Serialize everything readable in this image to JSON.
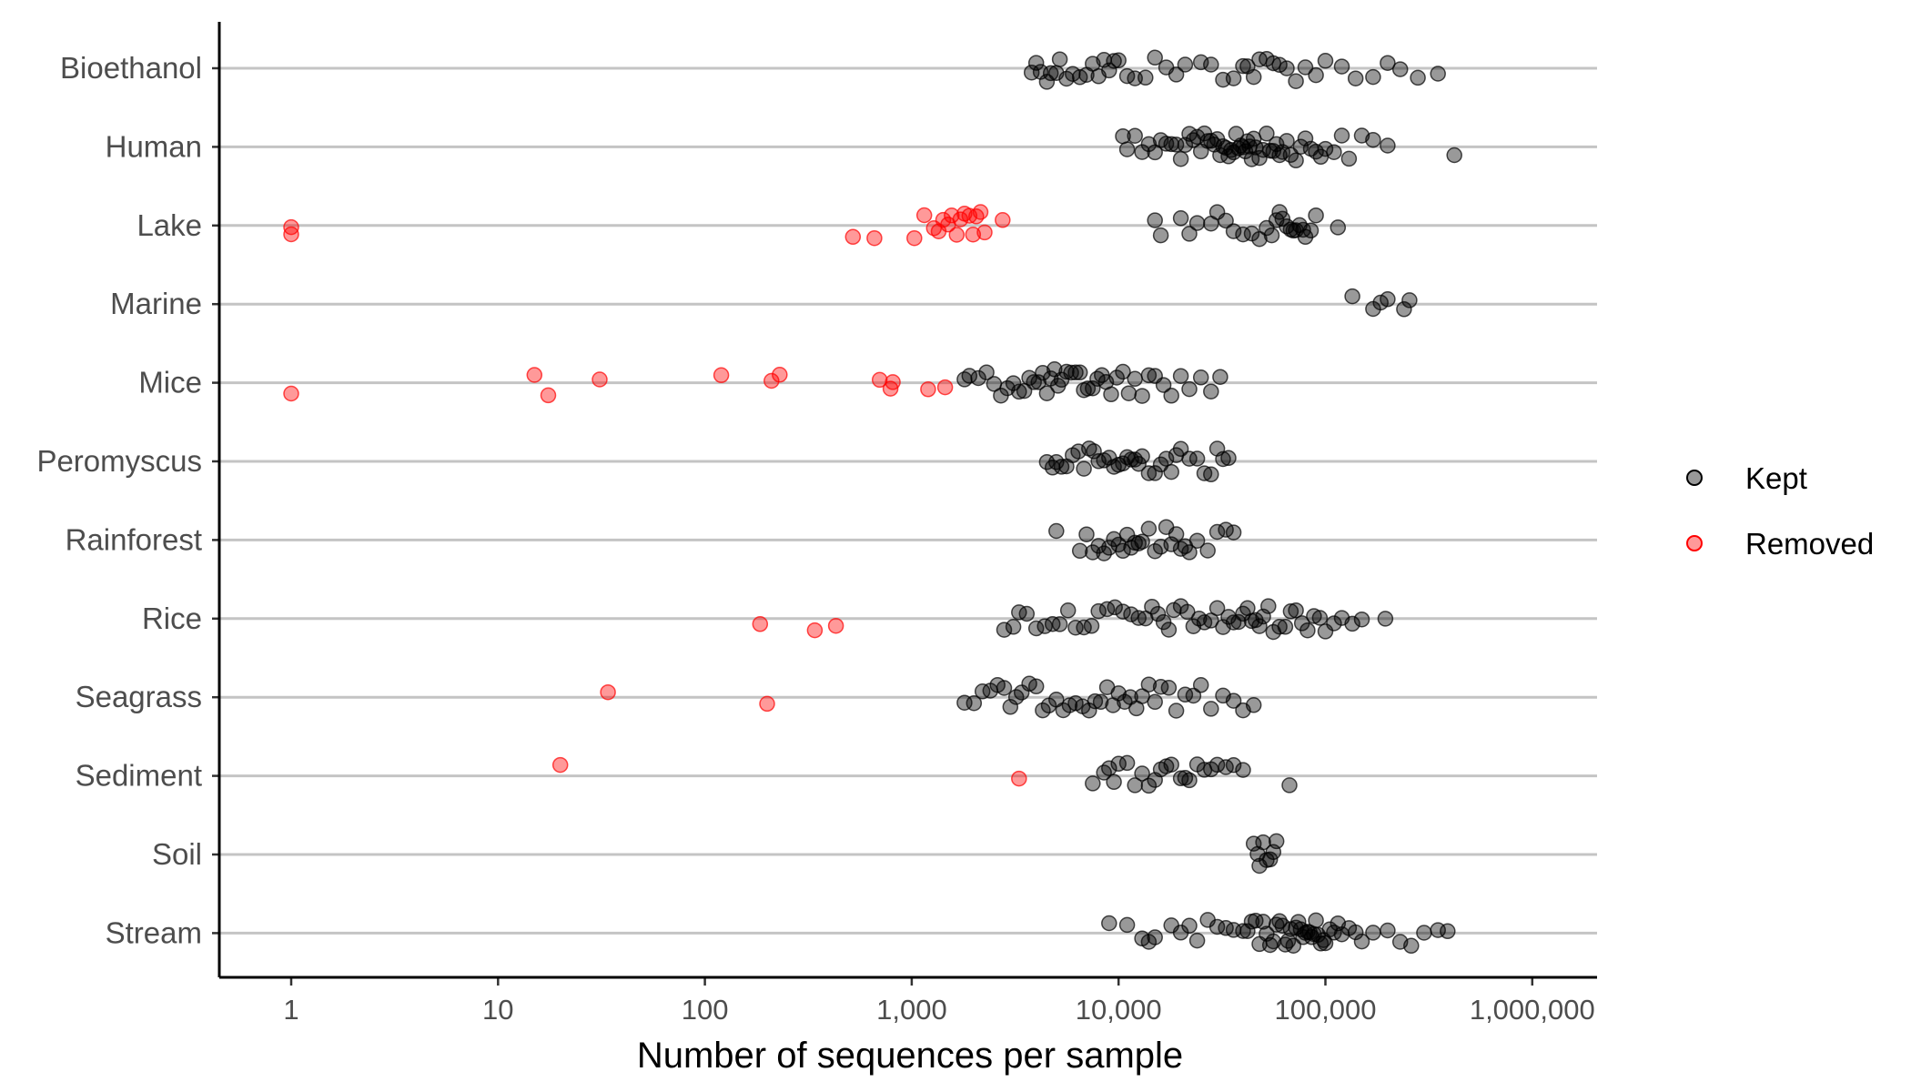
{
  "chart_data": {
    "type": "scatter",
    "title": "",
    "xlabel": "Number of sequences per sample",
    "ylabel": "",
    "x_scale": "log10",
    "xlim": [
      0.45,
      1100000
    ],
    "x_ticks": [
      1,
      10,
      100,
      1000,
      10000,
      100000,
      1000000
    ],
    "x_tick_labels": [
      "1",
      "10",
      "100",
      "1,000",
      "10,000",
      "100,000",
      "1,000,000"
    ],
    "categories": [
      "Bioethanol",
      "Human",
      "Lake",
      "Marine",
      "Mice",
      "Peromyscus",
      "Rainforest",
      "Rice",
      "Seagrass",
      "Sediment",
      "Soil",
      "Stream"
    ],
    "grid": "horizontal",
    "legend_position": "right",
    "series": [
      {
        "name": "Kept",
        "color": "#000000",
        "opacity": 0.4,
        "points": {
          "Bioethanol": [
            3800,
            4000,
            4200,
            4500,
            4700,
            5000,
            5200,
            5600,
            6000,
            6500,
            7000,
            7500,
            8000,
            8500,
            9000,
            9500,
            10000,
            11000,
            12000,
            13500,
            15000,
            17000,
            19000,
            21000,
            25000,
            28000,
            32000,
            36000,
            40000,
            42000,
            45000,
            48000,
            52000,
            56000,
            60000,
            65000,
            72000,
            80000,
            90000,
            100000,
            120000,
            140000,
            170000,
            200000,
            230000,
            280000,
            350000
          ],
          "Human": [
            10500,
            11000,
            12000,
            13000,
            14000,
            15000,
            16000,
            17000,
            18000,
            19000,
            20000,
            21000,
            22000,
            23000,
            24000,
            25000,
            26000,
            27000,
            28000,
            29000,
            30000,
            31000,
            32000,
            33000,
            34000,
            35000,
            36000,
            37000,
            38000,
            39000,
            40000,
            41000,
            42000,
            43000,
            44000,
            45000,
            46000,
            48000,
            50000,
            52000,
            54000,
            56000,
            58000,
            60000,
            62000,
            65000,
            68000,
            72000,
            76000,
            80000,
            85000,
            90000,
            95000,
            100000,
            110000,
            120000,
            130000,
            150000,
            170000,
            200000,
            420000
          ],
          "Lake": [
            15000,
            16000,
            20000,
            22000,
            24000,
            28000,
            30000,
            33000,
            36000,
            40000,
            44000,
            48000,
            52000,
            55000,
            58000,
            60000,
            62000,
            65000,
            68000,
            70000,
            72000,
            75000,
            78000,
            80000,
            85000,
            90000,
            115000
          ],
          "Marine": [
            135000,
            170000,
            185000,
            200000,
            240000,
            255000
          ],
          "Mice": [
            1800,
            1900,
            2100,
            2300,
            2500,
            2700,
            2900,
            3100,
            3300,
            3500,
            3700,
            3900,
            4100,
            4300,
            4500,
            4700,
            4900,
            5100,
            5300,
            5600,
            5900,
            6200,
            6500,
            6800,
            7100,
            7500,
            7900,
            8300,
            8700,
            9200,
            9800,
            10500,
            11200,
            12000,
            13000,
            14000,
            15000,
            16500,
            18000,
            20000,
            22000,
            25000,
            28000,
            31000
          ],
          "Peromyscus": [
            4500,
            4800,
            5000,
            5300,
            5600,
            6000,
            6400,
            6800,
            7200,
            7600,
            8000,
            8500,
            9000,
            9500,
            10000,
            10500,
            11000,
            11500,
            12000,
            12500,
            13000,
            14000,
            15000,
            16000,
            17000,
            18000,
            19000,
            20000,
            22000,
            24000,
            26000,
            28000,
            30000,
            32000,
            34000
          ],
          "Rainforest": [
            5000,
            6500,
            7000,
            7500,
            8000,
            8500,
            9000,
            9500,
            10000,
            10500,
            11000,
            11500,
            12000,
            12500,
            13000,
            14000,
            15000,
            16000,
            17000,
            18000,
            19000,
            20000,
            21000,
            22000,
            24000,
            27000,
            30000,
            33000,
            36000
          ],
          "Rice": [
            2800,
            3100,
            3300,
            3600,
            4000,
            4400,
            4800,
            5200,
            5700,
            6200,
            6800,
            7400,
            8000,
            8800,
            9600,
            10500,
            11500,
            12500,
            13500,
            14500,
            15500,
            16500,
            17500,
            18500,
            20000,
            21500,
            23000,
            24500,
            26000,
            28000,
            30000,
            32000,
            34000,
            36000,
            38000,
            40000,
            42000,
            44000,
            46000,
            48000,
            50000,
            53000,
            56000,
            60000,
            64000,
            68000,
            72000,
            77000,
            82000,
            88000,
            94000,
            100000,
            110000,
            120000,
            135000,
            150000,
            195000
          ],
          "Seagrass": [
            1800,
            2000,
            2200,
            2400,
            2600,
            2800,
            3000,
            3200,
            3400,
            3700,
            4000,
            4300,
            4600,
            5000,
            5400,
            5800,
            6200,
            6700,
            7200,
            7700,
            8200,
            8800,
            9400,
            10000,
            10700,
            11400,
            12200,
            13000,
            14000,
            15000,
            16000,
            17500,
            19000,
            21000,
            23000,
            25000,
            28000,
            32000,
            36000,
            40000,
            45000
          ],
          "Sediment": [
            7500,
            8500,
            9000,
            9500,
            10000,
            11000,
            12000,
            13000,
            14000,
            15000,
            16000,
            17000,
            18000,
            20000,
            21000,
            22000,
            24000,
            26000,
            28000,
            30000,
            33000,
            36000,
            40000,
            67000
          ],
          "Soil": [
            45000,
            47000,
            48000,
            50000,
            52000,
            54000,
            56000,
            58000
          ],
          "Stream": [
            9000,
            11000,
            13000,
            14000,
            15000,
            18000,
            20000,
            22000,
            24000,
            27000,
            30000,
            33000,
            36000,
            40000,
            42000,
            44000,
            46000,
            48000,
            50000,
            52000,
            54000,
            56000,
            58000,
            60000,
            62000,
            64000,
            66000,
            68000,
            70000,
            72000,
            74000,
            76000,
            78000,
            80000,
            82000,
            84000,
            86000,
            88000,
            90000,
            92000,
            95000,
            98000,
            100000,
            105000,
            110000,
            115000,
            120000,
            130000,
            140000,
            150000,
            170000,
            200000,
            230000,
            260000,
            300000,
            350000,
            390000
          ]
        }
      },
      {
        "name": "Removed",
        "color": "#ff0000",
        "opacity": 0.4,
        "points": {
          "Lake": [
            1,
            1,
            520,
            660,
            1030,
            1150,
            1280,
            1350,
            1420,
            1500,
            1560,
            1650,
            1720,
            1800,
            1900,
            1980,
            2050,
            2150,
            2250,
            2750
          ],
          "Mice": [
            1,
            15,
            17.5,
            31,
            120,
            210,
            230,
            700,
            790,
            810,
            1200,
            1450
          ],
          "Rice": [
            185,
            340,
            430
          ],
          "Seagrass": [
            34,
            200
          ],
          "Sediment": [
            20,
            3300
          ]
        }
      }
    ]
  }
}
